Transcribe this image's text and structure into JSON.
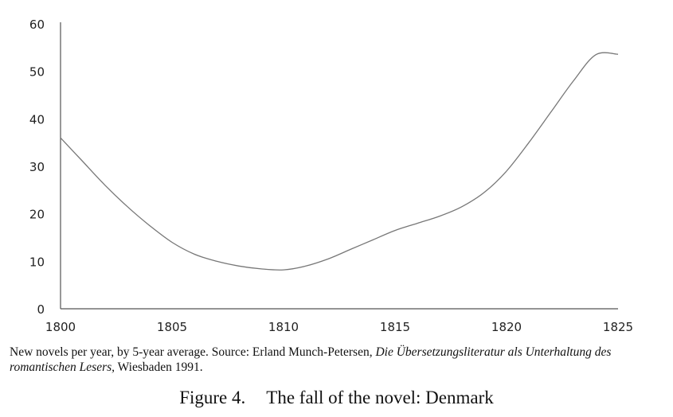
{
  "chart_data": {
    "type": "line",
    "title": "",
    "xlabel": "",
    "ylabel": "",
    "xlim": [
      1800,
      1825
    ],
    "ylim": [
      0,
      60
    ],
    "xticks": [
      1800,
      1805,
      1810,
      1815,
      1820,
      1825
    ],
    "yticks": [
      0,
      10,
      20,
      30,
      40,
      50,
      60
    ],
    "grid": false,
    "series": [
      {
        "name": "",
        "x": [
          1800,
          1801,
          1802,
          1803,
          1804,
          1805,
          1806,
          1807,
          1808,
          1809,
          1810,
          1811,
          1812,
          1813,
          1814,
          1815,
          1816,
          1817,
          1818,
          1819,
          1820,
          1821,
          1822,
          1823,
          1824,
          1825
        ],
        "y": [
          36,
          31,
          26,
          21.5,
          17.5,
          14,
          11.5,
          10,
          9,
          8.4,
          8.2,
          9,
          10.5,
          12.5,
          14.5,
          16.5,
          18,
          19.5,
          21.5,
          24.5,
          29,
          35,
          41.5,
          48,
          53.5,
          53.6
        ]
      }
    ]
  },
  "caption": {
    "text_a": "New novels per year, by 5-year average. Source: Erland Munch-Petersen, ",
    "text_italic_a": "Die Übersetzungsliteratur als Unterhaltung des romantischen Lesers,",
    "text_b": " Wiesbaden 1991."
  },
  "figure": {
    "number": "Figure 4.",
    "title": "The fall of the novel: Denmark"
  }
}
